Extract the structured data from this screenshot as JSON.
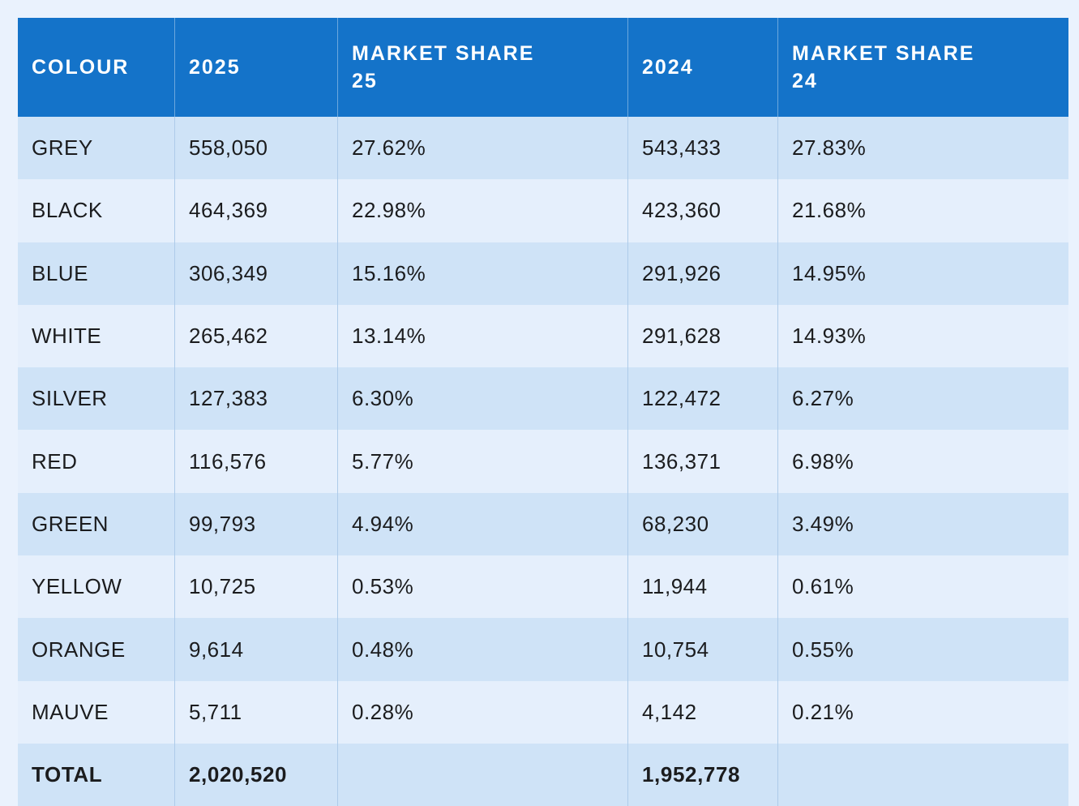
{
  "chart_data": {
    "type": "table",
    "columns": [
      "COLOUR",
      "2025",
      "MARKET SHARE 25",
      "2024",
      "MARKET SHARE 24"
    ],
    "rows": [
      [
        "GREY",
        558050,
        "27.62%",
        543433,
        "27.83%"
      ],
      [
        "BLACK",
        464369,
        "22.98%",
        423360,
        "21.68%"
      ],
      [
        "BLUE",
        306349,
        "15.16%",
        291926,
        "14.95%"
      ],
      [
        "WHITE",
        265462,
        "13.14%",
        291628,
        "14.93%"
      ],
      [
        "SILVER",
        127383,
        "6.30%",
        122472,
        "6.27%"
      ],
      [
        "RED",
        116576,
        "5.77%",
        136371,
        "6.98%"
      ],
      [
        "GREEN",
        99793,
        "4.94%",
        68230,
        "3.49%"
      ],
      [
        "YELLOW",
        10725,
        "0.53%",
        11944,
        "0.61%"
      ],
      [
        "ORANGE",
        9614,
        "0.48%",
        10754,
        "0.55%"
      ],
      [
        "MAUVE",
        5711,
        "0.28%",
        4142,
        "0.21%"
      ],
      [
        "TOTAL",
        2020520,
        "",
        1952778,
        ""
      ]
    ]
  },
  "table": {
    "colors": {
      "page_bg": "#eaf2fd",
      "header_bg": "#1473c9",
      "header_text": "#ffffff",
      "row_dark": "#cfe3f7",
      "row_light": "#e5effc",
      "cell_text": "#1b1c1e"
    },
    "header": {
      "colour": "COLOUR",
      "y2025": "2025",
      "share25": "MARKET SHARE 25",
      "y2024": "2024",
      "share24": "MARKET SHARE 24"
    },
    "rows": [
      {
        "colour": "GREY",
        "y2025": "558,050",
        "share25": "27.62%",
        "y2024": "543,433",
        "share24": "27.83%"
      },
      {
        "colour": "BLACK",
        "y2025": "464,369",
        "share25": "22.98%",
        "y2024": "423,360",
        "share24": "21.68%"
      },
      {
        "colour": "BLUE",
        "y2025": "306,349",
        "share25": "15.16%",
        "y2024": "291,926",
        "share24": "14.95%"
      },
      {
        "colour": "WHITE",
        "y2025": "265,462",
        "share25": "13.14%",
        "y2024": "291,628",
        "share24": "14.93%"
      },
      {
        "colour": "SILVER",
        "y2025": "127,383",
        "share25": "6.30%",
        "y2024": "122,472",
        "share24": "6.27%"
      },
      {
        "colour": "RED",
        "y2025": "116,576",
        "share25": "5.77%",
        "y2024": "136,371",
        "share24": "6.98%"
      },
      {
        "colour": "GREEN",
        "y2025": "99,793",
        "share25": "4.94%",
        "y2024": "68,230",
        "share24": "3.49%"
      },
      {
        "colour": "YELLOW",
        "y2025": "10,725",
        "share25": "0.53%",
        "y2024": "11,944",
        "share24": "0.61%"
      },
      {
        "colour": "ORANGE",
        "y2025": "9,614",
        "share25": "0.48%",
        "y2024": "10,754",
        "share24": "0.55%"
      },
      {
        "colour": "MAUVE",
        "y2025": "5,711",
        "share25": "0.28%",
        "y2024": "4,142",
        "share24": "0.21%"
      }
    ],
    "total": {
      "label": "TOTAL",
      "y2025": "2,020,520",
      "share25": "",
      "y2024": "1,952,778",
      "share24": ""
    }
  }
}
